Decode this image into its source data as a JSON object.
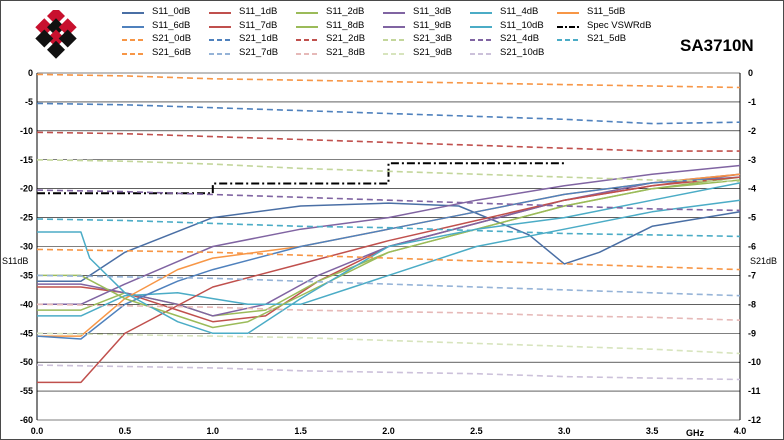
{
  "model_label": "SA3710N",
  "colors": {
    "logo_red": "#c8102e",
    "logo_black": "#111111",
    "grid": "#000000",
    "spec": "#000000"
  },
  "chart_data": {
    "type": "line",
    "xlim": [
      0.0,
      4.0
    ],
    "ylim_left": [
      -60,
      0
    ],
    "ylim_right": [
      -12,
      0
    ],
    "x_ticks": [
      "0.0",
      "0.5",
      "1.0",
      "1.5",
      "2.0",
      "2.5",
      "3.0",
      "3.5",
      "4.0"
    ],
    "x_unit": "GHz",
    "y_left_label": "S11dB",
    "y_right_label": "S21dB",
    "y_left_ticks": [
      "0",
      "-5",
      "-10",
      "-15",
      "-20",
      "-25",
      "-30",
      "-35",
      "-40",
      "-45",
      "-50",
      "-55",
      "-60"
    ],
    "y_right_ticks": [
      "0",
      "-1",
      "-2",
      "-3",
      "-4",
      "-5",
      "-6",
      "-7",
      "-8",
      "-9",
      "-10",
      "-11",
      "-12"
    ],
    "grid": "horizontal",
    "series": [
      {
        "name": "S11_0dB",
        "axis": "left",
        "style": "solid",
        "color": "#4a6fa5",
        "x": [
          0.0,
          0.25,
          0.5,
          1.0,
          1.5,
          2.0,
          2.4,
          2.8,
          3.0,
          3.2,
          3.5,
          4.0
        ],
        "y": [
          -36,
          -36,
          -31,
          -25,
          -23,
          -22.5,
          -23,
          -28,
          -33,
          -31,
          -26.5,
          -24
        ]
      },
      {
        "name": "S11_1dB",
        "axis": "left",
        "style": "solid",
        "color": "#c0504d",
        "x": [
          0.0,
          0.25,
          0.5,
          0.8,
          1.0,
          1.3,
          1.6,
          2.0,
          2.5,
          3.0,
          3.5,
          4.0
        ],
        "y": [
          -37,
          -37,
          -38,
          -41,
          -43,
          -42,
          -36,
          -30,
          -26,
          -22,
          -19.5,
          -17.5
        ]
      },
      {
        "name": "S11_2dB",
        "axis": "left",
        "style": "solid",
        "color": "#9bbb59",
        "x": [
          0.0,
          0.25,
          0.5,
          0.8,
          1.0,
          1.3,
          1.6,
          2.0,
          2.5,
          3.0,
          3.5,
          4.0
        ],
        "y": [
          -41,
          -41,
          -38,
          -40,
          -42,
          -41,
          -36,
          -31,
          -27,
          -23,
          -20,
          -18
        ]
      },
      {
        "name": "S11_3dB",
        "axis": "left",
        "style": "solid",
        "color": "#8064a2",
        "x": [
          0.0,
          0.25,
          0.5,
          0.8,
          1.0,
          1.3,
          1.6,
          2.0,
          2.5,
          3.0,
          3.5,
          4.0
        ],
        "y": [
          -36.5,
          -36.5,
          -38,
          -40,
          -42,
          -40,
          -35,
          -30,
          -26,
          -22,
          -19,
          -17.5
        ]
      },
      {
        "name": "S11_4dB",
        "axis": "left",
        "style": "solid",
        "color": "#4bacc6",
        "x": [
          0.0,
          0.25,
          0.5,
          0.8,
          1.0,
          1.2,
          1.5,
          1.8,
          2.0,
          2.5,
          3.0,
          3.5,
          4.0
        ],
        "y": [
          -42,
          -42,
          -38.5,
          -38,
          -39,
          -40,
          -40,
          -37,
          -35,
          -30,
          -27,
          -24,
          -22
        ]
      },
      {
        "name": "S11_5dB",
        "axis": "left",
        "style": "solid",
        "color": "#f79646",
        "x": [
          0.0,
          0.25,
          0.5,
          0.8,
          1.0,
          1.5,
          2.0,
          2.5,
          3.0,
          3.5,
          4.0
        ],
        "y": [
          -45.5,
          -45.5,
          -39,
          -34,
          -32,
          -30,
          -27,
          -24,
          -21,
          -19,
          -17.5
        ]
      },
      {
        "name": "S11_6dB",
        "axis": "left",
        "style": "solid",
        "color": "#4f81bd",
        "x": [
          0.0,
          0.25,
          0.5,
          0.8,
          1.0,
          1.5,
          2.0,
          2.5,
          3.0,
          3.5,
          4.0
        ],
        "y": [
          -45.5,
          -46,
          -40,
          -36,
          -34,
          -30,
          -27,
          -24,
          -21,
          -19,
          -18
        ]
      },
      {
        "name": "S11_7dB",
        "axis": "left",
        "style": "solid",
        "color": "#c0504d",
        "x": [
          0.0,
          0.25,
          0.5,
          1.0,
          1.5,
          2.0,
          2.5,
          3.0,
          3.5,
          4.0
        ],
        "y": [
          -53.5,
          -53.5,
          -45,
          -37,
          -33,
          -29,
          -25.5,
          -22,
          -19.5,
          -18
        ]
      },
      {
        "name": "S11_8dB",
        "axis": "left",
        "style": "solid",
        "color": "#9bbb59",
        "x": [
          0.0,
          0.25,
          0.5,
          0.8,
          1.0,
          1.2,
          1.6,
          2.0,
          2.5,
          3.0,
          3.5,
          4.0
        ],
        "y": [
          -35,
          -35,
          -39,
          -42,
          -44,
          -43,
          -37,
          -31,
          -27,
          -23,
          -20,
          -18.5
        ]
      },
      {
        "name": "S11_9dB",
        "axis": "left",
        "style": "solid",
        "color": "#8064a2",
        "x": [
          0.0,
          0.25,
          0.5,
          1.0,
          1.5,
          2.0,
          2.5,
          3.0,
          3.5,
          4.0
        ],
        "y": [
          -40,
          -40,
          -36.5,
          -30,
          -27,
          -25,
          -22,
          -19.5,
          -17.5,
          -16
        ]
      },
      {
        "name": "S11_10dB",
        "axis": "left",
        "style": "solid",
        "color": "#4bacc6",
        "x": [
          0.0,
          0.25,
          0.3,
          0.5,
          0.8,
          1.0,
          1.2,
          1.5,
          2.0,
          2.5,
          3.0,
          3.5,
          4.0
        ],
        "y": [
          -27.5,
          -27.5,
          -32,
          -38,
          -43,
          -45,
          -45,
          -39,
          -30,
          -27,
          -25,
          -22,
          -19
        ]
      },
      {
        "name": "Spec VSWRdB",
        "axis": "left",
        "style": "dashdot",
        "color": "#000000",
        "x": [
          0.0,
          1.0,
          1.0,
          2.0,
          2.0,
          3.0
        ],
        "y": [
          -20.8,
          -20.8,
          -19.1,
          -19.1,
          -15.6,
          -15.6
        ]
      },
      {
        "name": "S21_0dB",
        "axis": "right",
        "style": "dashed",
        "color": "#f79646",
        "x": [
          0.0,
          0.5,
          1.0,
          1.5,
          2.0,
          2.5,
          3.0,
          3.5,
          4.0
        ],
        "y": [
          -0.05,
          -0.1,
          -0.2,
          -0.25,
          -0.3,
          -0.35,
          -0.4,
          -0.45,
          -0.5
        ]
      },
      {
        "name": "S21_1dB",
        "axis": "right",
        "style": "dashed",
        "color": "#4f81bd",
        "x": [
          0.0,
          0.5,
          1.0,
          1.5,
          2.0,
          2.5,
          3.0,
          3.5,
          4.0
        ],
        "y": [
          -1.05,
          -1.1,
          -1.2,
          -1.3,
          -1.4,
          -1.5,
          -1.6,
          -1.75,
          -1.7
        ]
      },
      {
        "name": "S21_2dB",
        "axis": "right",
        "style": "dashed",
        "color": "#c0504d",
        "x": [
          0.0,
          0.5,
          1.0,
          1.5,
          2.0,
          2.5,
          3.0,
          3.5,
          4.0
        ],
        "y": [
          -2.05,
          -2.1,
          -2.2,
          -2.3,
          -2.4,
          -2.5,
          -2.6,
          -2.7,
          -2.7
        ]
      },
      {
        "name": "S21_3dB",
        "axis": "right",
        "style": "dashed",
        "color": "#c3d69b",
        "x": [
          0.0,
          0.5,
          1.0,
          1.5,
          2.0,
          2.5,
          3.0,
          3.5,
          4.0
        ],
        "y": [
          -3.0,
          -3.05,
          -3.15,
          -3.3,
          -3.4,
          -3.5,
          -3.6,
          -3.7,
          -3.75
        ]
      },
      {
        "name": "S21_4dB",
        "axis": "right",
        "style": "dashed",
        "color": "#8064a2",
        "x": [
          0.0,
          0.5,
          1.0,
          1.5,
          2.0,
          2.5,
          3.0,
          3.5,
          4.0
        ],
        "y": [
          -4.05,
          -4.1,
          -4.2,
          -4.3,
          -4.4,
          -4.5,
          -4.6,
          -4.7,
          -4.75
        ]
      },
      {
        "name": "S21_5dB",
        "axis": "right",
        "style": "dashed",
        "color": "#4bacc6",
        "x": [
          0.0,
          0.5,
          1.0,
          1.5,
          2.0,
          2.5,
          3.0,
          3.5,
          4.0
        ],
        "y": [
          -5.05,
          -5.1,
          -5.2,
          -5.3,
          -5.35,
          -5.45,
          -5.55,
          -5.6,
          -5.65
        ]
      },
      {
        "name": "S21_6dB",
        "axis": "right",
        "style": "dashed",
        "color": "#f79646",
        "x": [
          0.0,
          0.5,
          1.0,
          1.5,
          2.0,
          2.5,
          3.0,
          3.5,
          4.0
        ],
        "y": [
          -6.1,
          -6.15,
          -6.2,
          -6.3,
          -6.4,
          -6.5,
          -6.6,
          -6.7,
          -6.8
        ]
      },
      {
        "name": "S21_7dB",
        "axis": "right",
        "style": "dashed",
        "color": "#95b3d7",
        "x": [
          0.0,
          0.5,
          1.0,
          1.5,
          2.0,
          2.5,
          3.0,
          3.5,
          4.0
        ],
        "y": [
          -7.0,
          -7.05,
          -7.1,
          -7.2,
          -7.3,
          -7.4,
          -7.5,
          -7.6,
          -7.7
        ]
      },
      {
        "name": "S21_8dB",
        "axis": "right",
        "style": "dashed",
        "color": "#e6b9b8",
        "x": [
          0.0,
          0.5,
          1.0,
          1.5,
          2.0,
          2.5,
          3.0,
          3.5,
          4.0
        ],
        "y": [
          -8.0,
          -8.05,
          -8.1,
          -8.2,
          -8.25,
          -8.3,
          -8.4,
          -8.45,
          -8.55
        ]
      },
      {
        "name": "S21_9dB",
        "axis": "right",
        "style": "dashed",
        "color": "#d7e4bd",
        "x": [
          0.0,
          0.5,
          1.0,
          1.5,
          2.0,
          2.5,
          3.0,
          3.5,
          4.0
        ],
        "y": [
          -9.0,
          -9.05,
          -9.1,
          -9.15,
          -9.25,
          -9.35,
          -9.45,
          -9.55,
          -9.7
        ]
      },
      {
        "name": "S21_10dB",
        "axis": "right",
        "style": "dashed",
        "color": "#ccc1da",
        "x": [
          0.0,
          0.5,
          1.0,
          1.5,
          2.0,
          2.5,
          3.0,
          3.5,
          4.0
        ],
        "y": [
          -10.1,
          -10.15,
          -10.2,
          -10.3,
          -10.35,
          -10.4,
          -10.5,
          -10.55,
          -10.6
        ]
      }
    ],
    "legend_order": [
      "S11_0dB",
      "S11_1dB",
      "S11_2dB",
      "S11_3dB",
      "S11_4dB",
      "S11_5dB",
      "S11_6dB",
      "S11_7dB",
      "S11_8dB",
      "S11_9dB",
      "S11_10dB",
      "Spec VSWRdB",
      "S21_0dB",
      "S21_1dB",
      "S21_2dB",
      "S21_3dB",
      "S21_4dB",
      "S21_5dB",
      "S21_6dB",
      "S21_7dB",
      "S21_8dB",
      "S21_9dB",
      "S21_10dB"
    ]
  }
}
